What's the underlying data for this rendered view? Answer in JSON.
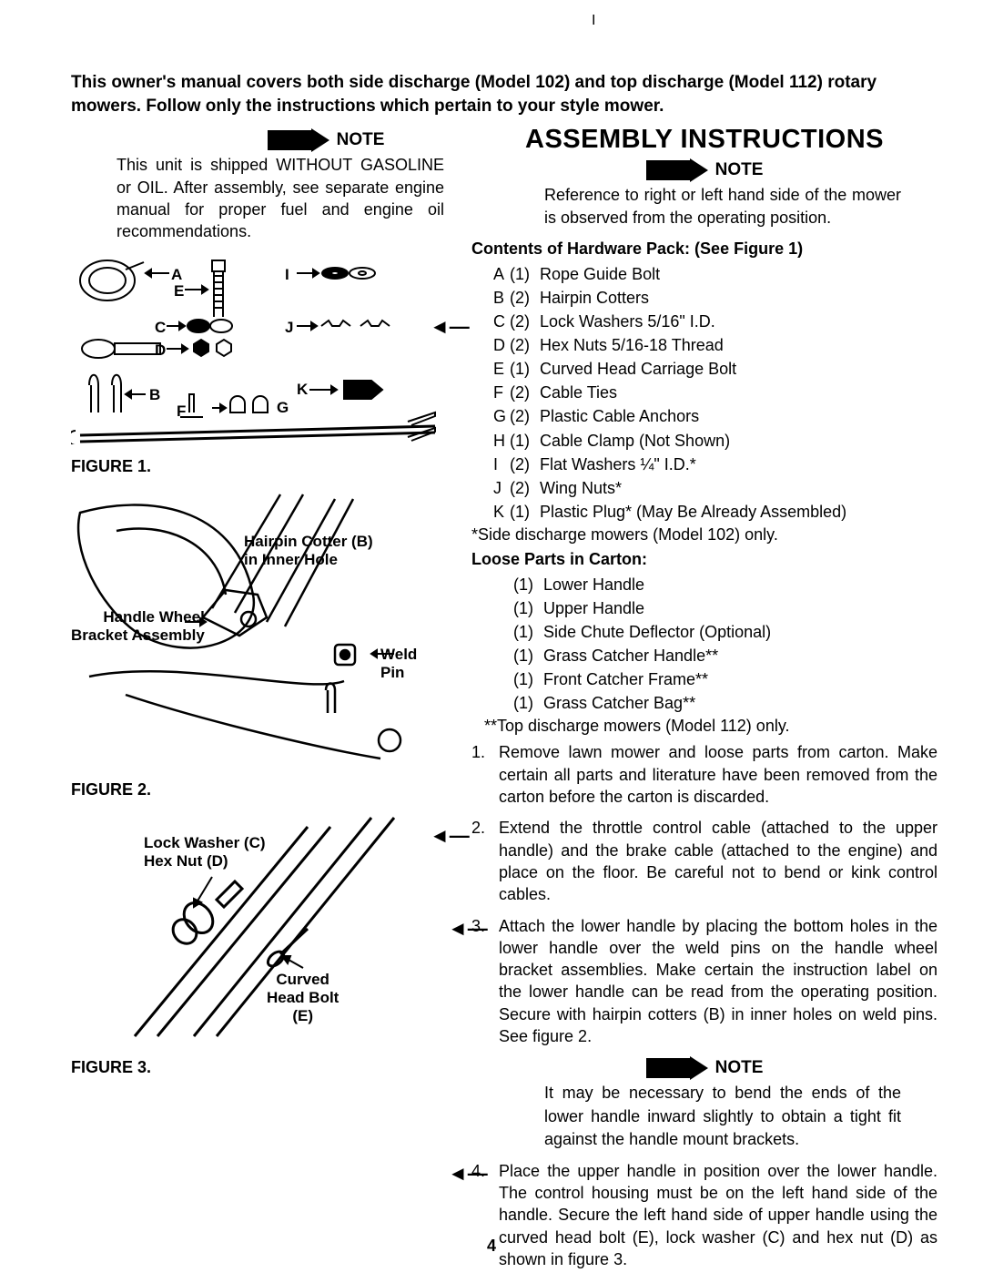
{
  "colors": {
    "text": "#000000",
    "background": "#ffffff"
  },
  "typography": {
    "body_fontsize": 18,
    "bold_fontsize": 19,
    "title_fontsize": 29,
    "font_family": "Arial"
  },
  "page_number": "4",
  "top_tick": "I",
  "intro": "This owner's manual covers both side discharge (Model 102) and top discharge (Model 112) rotary mowers. Follow only the instructions which pertain to your style mower.",
  "note1": {
    "label": "NOTE",
    "body": "This unit is shipped WITHOUT GAS­OLINE or OIL. After assembly, see separate engine manual for proper fuel and engine oil recommenda­tions."
  },
  "assembly_title": "ASSEMBLY INSTRUCTIONS",
  "note2": {
    "label": "NOTE",
    "body": "Reference to right or left hand side of the mower is observed from the operating position."
  },
  "hw_header": "Contents of Hardware Pack: (See Figure 1)",
  "hw_items": [
    {
      "letter": "A",
      "qty": "(1)",
      "desc": "Rope Guide Bolt"
    },
    {
      "letter": "B",
      "qty": "(2)",
      "desc": "Hairpin Cotters"
    },
    {
      "letter": "C",
      "qty": "(2)",
      "desc": "Lock Washers 5/16\" I.D."
    },
    {
      "letter": "D",
      "qty": "(2)",
      "desc": "Hex Nuts 5/16-18 Thread"
    },
    {
      "letter": "E",
      "qty": "(1)",
      "desc": "Curved Head Carriage Bolt"
    },
    {
      "letter": "F",
      "qty": "(2)",
      "desc": "Cable Ties"
    },
    {
      "letter": "G",
      "qty": "(2)",
      "desc": "Plastic Cable Anchors"
    },
    {
      "letter": "H",
      "qty": "(1)",
      "desc": "Cable Clamp (Not Shown)"
    },
    {
      "letter": "I",
      "qty": "(2)",
      "desc": "Flat Washers ¼\" I.D.*"
    },
    {
      "letter": "J",
      "qty": "(2)",
      "desc": "Wing Nuts*"
    },
    {
      "letter": "K",
      "qty": "(1)",
      "desc": "Plastic Plug* (May Be Already Assembled)"
    }
  ],
  "hw_footnote": "*Side discharge mowers (Model 102) only.",
  "loose_header": "Loose Parts in Carton:",
  "loose_items": [
    {
      "qty": "(1)",
      "desc": "Lower Handle"
    },
    {
      "qty": "(1)",
      "desc": "Upper Handle"
    },
    {
      "qty": "(1)",
      "desc": "Side Chute Deflector (Optional)"
    },
    {
      "qty": "(1)",
      "desc": "Grass Catcher Handle**"
    },
    {
      "qty": "(1)",
      "desc": "Front Catcher Frame**"
    },
    {
      "qty": "(1)",
      "desc": "Grass Catcher Bag**"
    }
  ],
  "loose_footnote": "**Top discharge mowers (Model 112) only.",
  "steps": [
    {
      "num": "1.",
      "body": "Remove lawn mower and loose parts from carton. Make certain all parts and literature have been removed from the carton before the carton is discarded."
    },
    {
      "num": "2.",
      "body": "Extend the throttle control cable (attached to the upper handle) and the brake cable (attached to the engine) and place on the floor. Be careful not to bend or kink control cables."
    },
    {
      "num": "3.",
      "body": "Attach the lower handle by placing the bottom holes in the lower handle over the weld pins on the handle wheel bracket assemblies. Make certain the instruction label on the lower handle can be read from the operating position. Secure with hairpin cotters (B) in inner holes on weld pins. See figure 2."
    }
  ],
  "note3": {
    "label": "NOTE",
    "body": "It may be necessary to bend the ends of the lower handle inward slightly to obtain a tight fit against the handle mount brackets."
  },
  "step4": {
    "num": "4.",
    "body": "Place the upper handle in position over the lower handle. The control housing must be on the left hand side of the handle. Secure the left hand side of upper handle using the curved head bolt (E), lock washer (C) and hex nut (D) as shown in figure 3."
  },
  "figures": {
    "f1": "FIGURE 1.",
    "f2": "FIGURE 2.",
    "f3": "FIGURE 3."
  },
  "fig1_labels": {
    "A": "A",
    "B": "B",
    "C": "C",
    "D": "D",
    "E": "E",
    "F": "F",
    "G": "G",
    "I": "I",
    "J": "J",
    "K": "K"
  },
  "fig2_labels": {
    "hairpin": "Hairpin Cotter (B)\nin Inner Hole",
    "handle": "Handle Wheel\nBracket Assembly",
    "weld": "Weld Pin"
  },
  "fig3_labels": {
    "lock": "Lock Washer (C)\nHex Nut (D)",
    "curved": "Curved\nHead Bolt\n(E)"
  }
}
